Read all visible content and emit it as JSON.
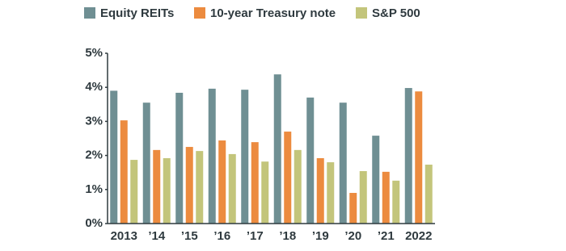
{
  "chart_data": {
    "type": "bar",
    "categories": [
      "2013",
      "’14",
      "’15",
      "’16",
      "’17",
      "’18",
      "’19",
      "’20",
      "’21",
      "2022"
    ],
    "series": [
      {
        "name": "Equity REITs",
        "color": "#6f8f93",
        "values": [
          3.9,
          3.55,
          3.84,
          3.96,
          3.93,
          4.38,
          3.7,
          3.55,
          2.58,
          3.98
        ]
      },
      {
        "name": "10-year Treasury note",
        "color": "#ec8b3f",
        "values": [
          3.03,
          2.16,
          2.25,
          2.44,
          2.39,
          2.7,
          1.92,
          0.9,
          1.52,
          3.88
        ]
      },
      {
        "name": "S&P 500",
        "color": "#c3c57b",
        "values": [
          1.87,
          1.92,
          2.13,
          2.04,
          1.82,
          2.16,
          1.8,
          1.54,
          1.26,
          1.73
        ]
      }
    ],
    "ylim": [
      0,
      5
    ],
    "yticks": [
      {
        "value": 0,
        "label": "0%"
      },
      {
        "value": 1,
        "label": "1%"
      },
      {
        "value": 2,
        "label": "2%"
      },
      {
        "value": 3,
        "label": "3%"
      },
      {
        "value": 4,
        "label": "4%"
      },
      {
        "value": 5,
        "label": "5%"
      }
    ],
    "grid": false,
    "legend": "top"
  }
}
